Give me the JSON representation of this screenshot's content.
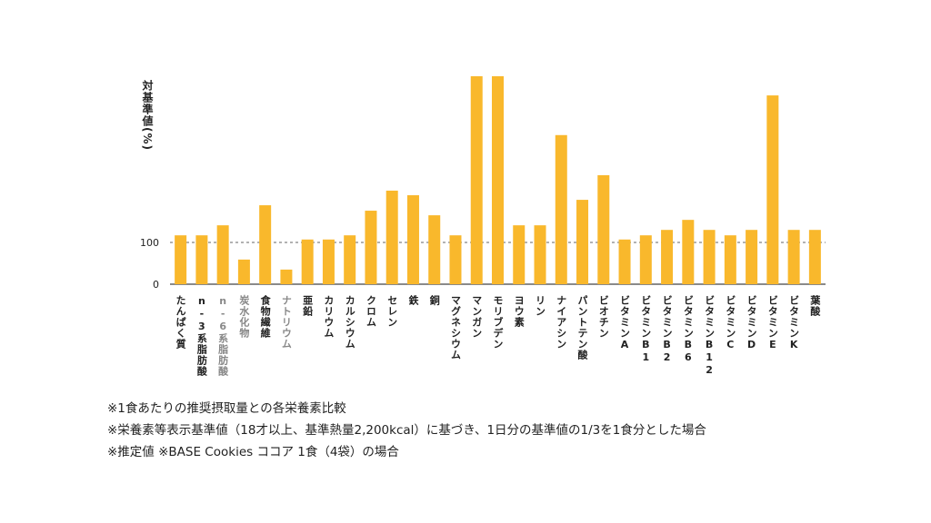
{
  "chart_data": {
    "type": "bar",
    "y_label": "対基準値(%)",
    "categories": [
      "たんぱく質",
      "n-3系脂肪酸",
      "n-6系脂肪酸",
      "炭水化物",
      "食物繊維",
      "ナトリウム",
      "亜鉛",
      "カリウム",
      "カルシウム",
      "クロム",
      "セレン",
      "鉄",
      "銅",
      "マグネシウム",
      "マンガン",
      "モリブデン",
      "ヨウ素",
      "リン",
      "ナイアシン",
      "パントテン酸",
      "ビオチン",
      "ビタミンA",
      "ビタミンB1",
      "ビタミンB2",
      "ビタミンB6",
      "ビタミンB12",
      "ビタミンC",
      "ビタミンD",
      "ビタミンE",
      "ビタミンK",
      "葉酸"
    ],
    "values": [
      117,
      117,
      141,
      59,
      189,
      35,
      107,
      107,
      117,
      176,
      224,
      213,
      165,
      117,
      498,
      498,
      141,
      141,
      357,
      202,
      261,
      107,
      117,
      130,
      154,
      130,
      117,
      130,
      452,
      130,
      130
    ],
    "label_colors": [
      "#222",
      "#222",
      "#888",
      "#888",
      "#222",
      "#888",
      "#222",
      "#222",
      "#222",
      "#222",
      "#222",
      "#222",
      "#222",
      "#222",
      "#222",
      "#222",
      "#222",
      "#222",
      "#222",
      "#222",
      "#222",
      "#222",
      "#222",
      "#222",
      "#222",
      "#222",
      "#222",
      "#222",
      "#222",
      "#222",
      "#222"
    ],
    "color": "#f9b82c",
    "ylim": [
      0,
      500
    ],
    "yticks": [
      0,
      100
    ],
    "grid": "dashed",
    "notes": [
      "※1食あたりの推奨摂取量との各栄養素比較",
      "※栄養素等表示基準値（18才以上、基準熱量2,200kcal）に基づき、1日分の基準値の1/3を1食分とした場合",
      "※推定値 ※BASE Cookies ココア 1食（4袋）の場合"
    ]
  }
}
